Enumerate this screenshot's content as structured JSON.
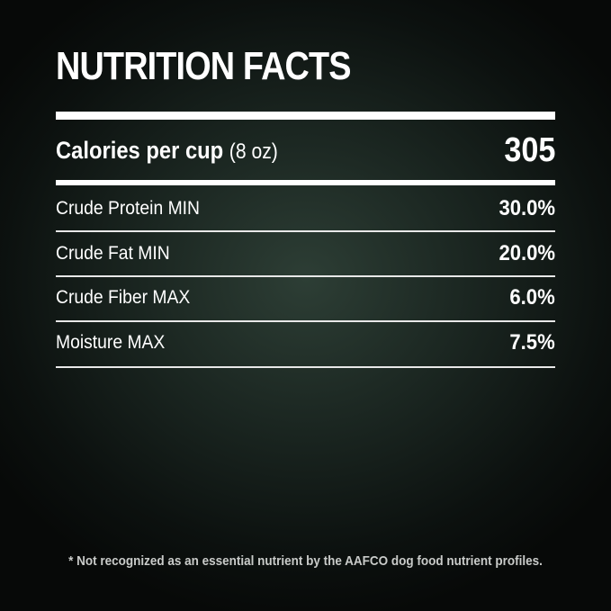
{
  "title": "NUTRITION FACTS",
  "calories": {
    "label": "Calories per cup",
    "unit": "(8 oz)",
    "value": "305"
  },
  "nutrients": [
    {
      "label": "Crude Protein MIN",
      "value": "30.0%"
    },
    {
      "label": "Crude Fat MIN",
      "value": "20.0%"
    },
    {
      "label": "Crude Fiber MAX",
      "value": "6.0%"
    },
    {
      "label": "Moisture MAX",
      "value": "7.5%"
    }
  ],
  "footnote": "* Not recognized as an essential nutrient by the AAFCO dog food nutrient profiles."
}
